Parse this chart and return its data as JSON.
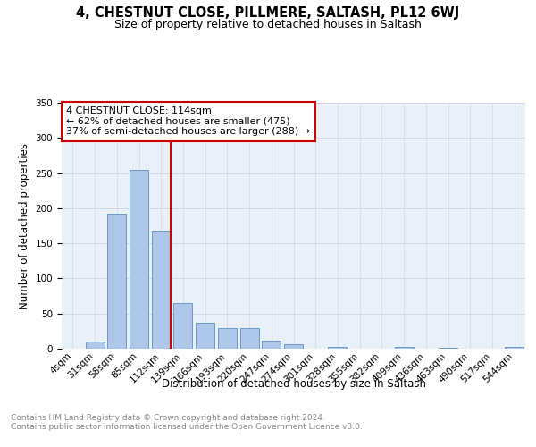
{
  "title": "4, CHESTNUT CLOSE, PILLMERE, SALTASH, PL12 6WJ",
  "subtitle": "Size of property relative to detached houses in Saltash",
  "xlabel": "Distribution of detached houses by size in Saltash",
  "ylabel": "Number of detached properties",
  "bin_labels": [
    "4sqm",
    "31sqm",
    "58sqm",
    "85sqm",
    "112sqm",
    "139sqm",
    "166sqm",
    "193sqm",
    "220sqm",
    "247sqm",
    "274sqm",
    "301sqm",
    "328sqm",
    "355sqm",
    "382sqm",
    "409sqm",
    "436sqm",
    "463sqm",
    "490sqm",
    "517sqm",
    "544sqm"
  ],
  "bin_values": [
    0,
    10,
    192,
    255,
    168,
    65,
    37,
    29,
    29,
    11,
    6,
    0,
    3,
    0,
    0,
    3,
    0,
    1,
    0,
    0,
    2
  ],
  "bar_color": "#aec6e8",
  "bar_edge_color": "#5a8fc2",
  "vline_x_index": 4,
  "vline_color": "#cc0000",
  "annotation_text": "4 CHESTNUT CLOSE: 114sqm\n← 62% of detached houses are smaller (475)\n37% of semi-detached houses are larger (288) →",
  "annotation_box_color": "#ffffff",
  "annotation_box_edge_color": "#cc0000",
  "ylim": [
    0,
    350
  ],
  "yticks": [
    0,
    50,
    100,
    150,
    200,
    250,
    300,
    350
  ],
  "grid_color": "#d0d8e8",
  "bg_color": "#eaf0f8",
  "footer_text": "Contains HM Land Registry data © Crown copyright and database right 2024.\nContains public sector information licensed under the Open Government Licence v3.0.",
  "title_fontsize": 10.5,
  "subtitle_fontsize": 9,
  "axis_label_fontsize": 8.5,
  "tick_fontsize": 7.5,
  "annotation_fontsize": 8,
  "footer_fontsize": 6.5
}
